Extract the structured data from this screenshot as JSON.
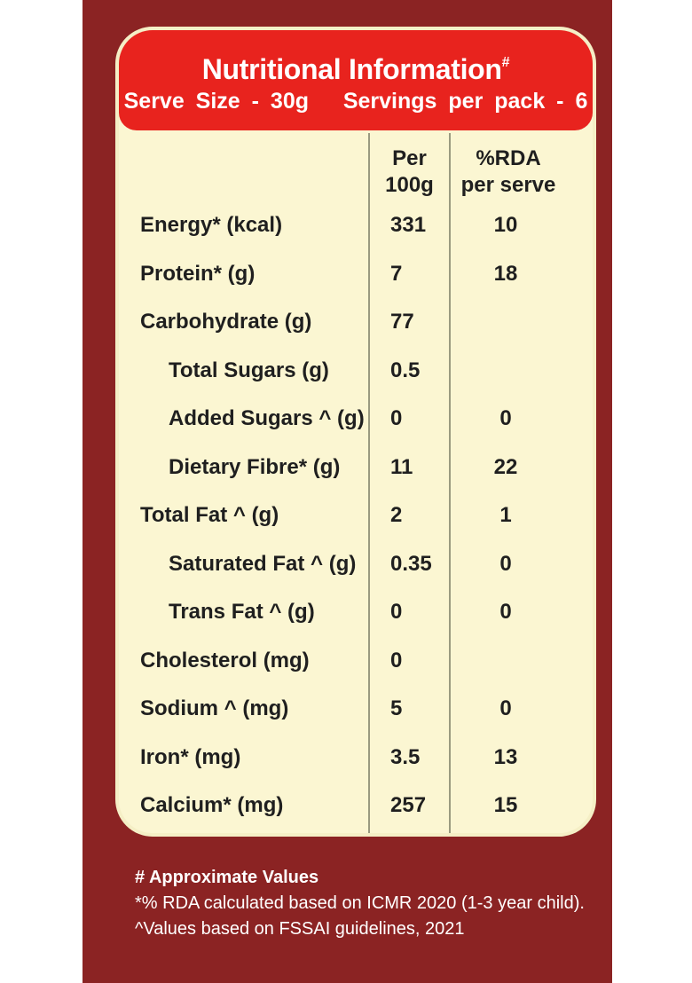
{
  "header": {
    "title": "Nutritional Information",
    "title_mark": "#",
    "subtitle": "Serve Size - 30g   Servings per pack - 6"
  },
  "columns": {
    "per100g": "Per\n100g",
    "rda": "%RDA\nper serve"
  },
  "rows": [
    {
      "name": "Energy* (kcal)",
      "per100g": "331",
      "rda": "10",
      "indent": false
    },
    {
      "name": "Protein* (g)",
      "per100g": "7",
      "rda": "18",
      "indent": false
    },
    {
      "name": "Carbohydrate (g)",
      "per100g": "77",
      "rda": "",
      "indent": false
    },
    {
      "name": "Total Sugars (g)",
      "per100g": "0.5",
      "rda": "",
      "indent": true
    },
    {
      "name": "Added Sugars ^ (g)",
      "per100g": "0",
      "rda": "0",
      "indent": true
    },
    {
      "name": "Dietary Fibre* (g)",
      "per100g": "11",
      "rda": "22",
      "indent": true
    },
    {
      "name": "Total Fat ^ (g)",
      "per100g": "2",
      "rda": "1",
      "indent": false
    },
    {
      "name": "Saturated Fat ^ (g)",
      "per100g": "0.35",
      "rda": "0",
      "indent": true
    },
    {
      "name": "Trans Fat ^ (g)",
      "per100g": "0",
      "rda": "0",
      "indent": true
    },
    {
      "name": "Cholesterol (mg)",
      "per100g": "0",
      "rda": "",
      "indent": false
    },
    {
      "name": "Sodium ^ (mg)",
      "per100g": "5",
      "rda": "0",
      "indent": false
    },
    {
      "name": "Iron* (mg)",
      "per100g": "3.5",
      "rda": "13",
      "indent": false
    },
    {
      "name": "Calcium* (mg)",
      "per100g": "257",
      "rda": "15",
      "indent": false
    }
  ],
  "footer": {
    "line1": "# Approximate Values",
    "line2": "*% RDA calculated based on ICMR 2020 (1-3 year child).",
    "line3": "^Values based on FSSAI guidelines, 2021"
  },
  "colors": {
    "pack": "#8b2323",
    "panel": "#fbf6d2",
    "header": "#e8231e",
    "text": "#1f1f1f"
  }
}
